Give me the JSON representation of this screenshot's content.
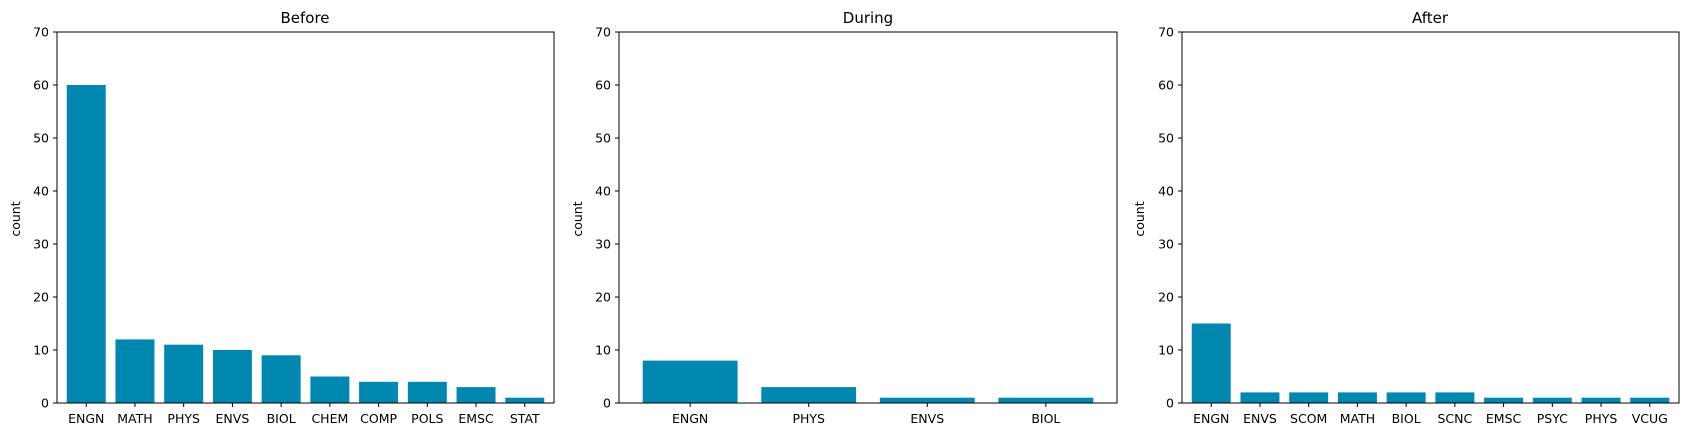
{
  "style": {
    "bar_color": "#0088b0",
    "axis_color": "#000000",
    "background": "#ffffff"
  },
  "chart_data": [
    {
      "type": "bar",
      "title": "Before",
      "xlabel": "",
      "ylabel": "count",
      "ylim": [
        0,
        70
      ],
      "yticks": [
        0,
        10,
        20,
        30,
        40,
        50,
        60,
        70
      ],
      "grid": false,
      "categories": [
        "ENGN",
        "MATH",
        "PHYS",
        "ENVS",
        "BIOL",
        "CHEM",
        "COMP",
        "POLS",
        "EMSC",
        "STAT"
      ],
      "values": [
        60,
        12,
        11,
        10,
        9,
        5,
        4,
        4,
        3,
        1
      ]
    },
    {
      "type": "bar",
      "title": "During",
      "xlabel": "",
      "ylabel": "count",
      "ylim": [
        0,
        70
      ],
      "yticks": [
        0,
        10,
        20,
        30,
        40,
        50,
        60,
        70
      ],
      "grid": false,
      "categories": [
        "ENGN",
        "PHYS",
        "ENVS",
        "BIOL"
      ],
      "values": [
        8,
        3,
        1,
        1
      ]
    },
    {
      "type": "bar",
      "title": "After",
      "xlabel": "",
      "ylabel": "count",
      "ylim": [
        0,
        70
      ],
      "yticks": [
        0,
        10,
        20,
        30,
        40,
        50,
        60,
        70
      ],
      "grid": false,
      "categories": [
        "ENGN",
        "ENVS",
        "SCOM",
        "MATH",
        "BIOL",
        "SCNC",
        "EMSC",
        "PSYC",
        "PHYS",
        "VCUG"
      ],
      "values": [
        15,
        2,
        2,
        2,
        2,
        2,
        1,
        1,
        1,
        1
      ]
    }
  ]
}
